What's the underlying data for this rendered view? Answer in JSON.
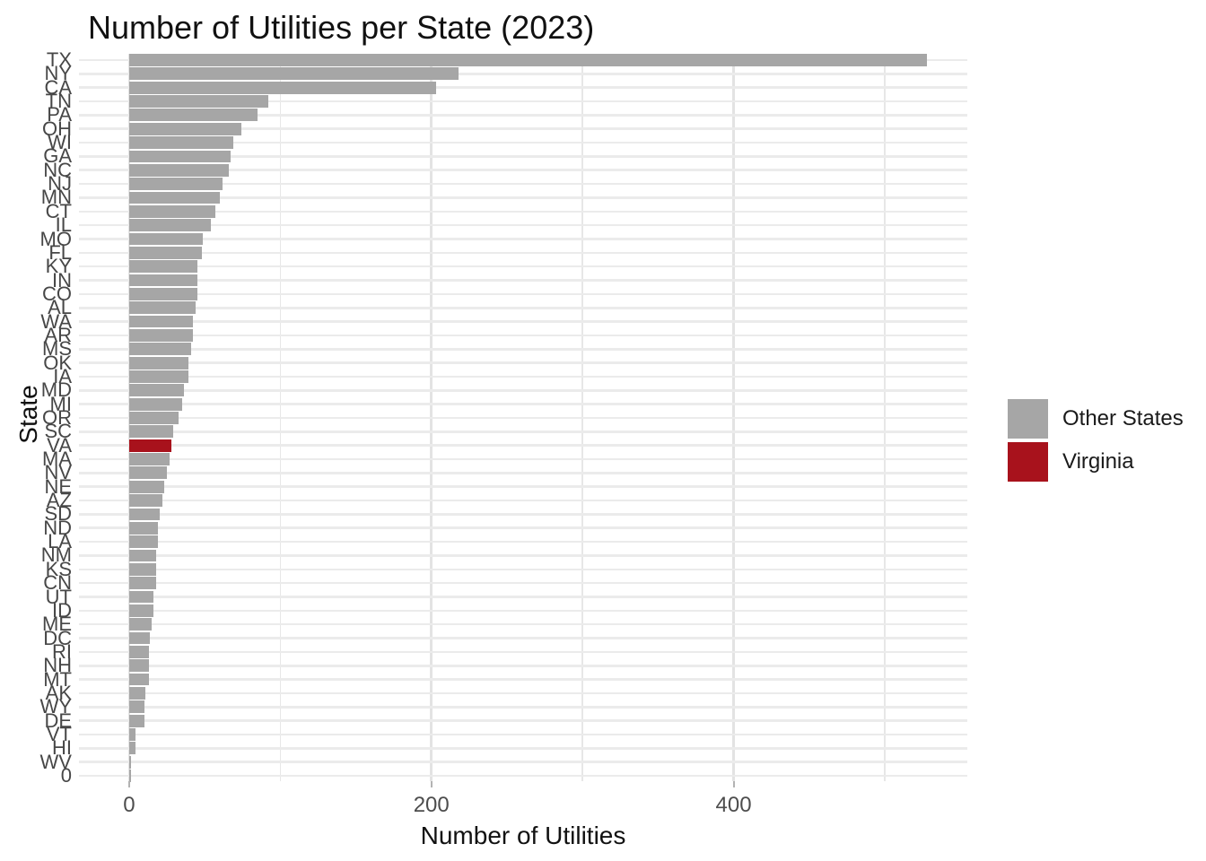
{
  "title": "Number of Utilities per State (2023)",
  "chart_data": {
    "type": "bar",
    "orientation": "horizontal",
    "title": "Number of Utilities per State (2023)",
    "xlabel": "Number of Utilities",
    "ylabel": "State",
    "x_ticks": [
      0,
      200,
      400
    ],
    "x_gridlines": [
      0,
      100,
      200,
      300,
      400,
      500
    ],
    "x_major_ticks": [
      0,
      200,
      400
    ],
    "xlim": [
      0,
      555
    ],
    "grid": "on",
    "bar_color_other": "#A6A6A6",
    "bar_color_highlight": "#A8121C",
    "highlight_category": "VA",
    "legend": {
      "position": "right",
      "entries": [
        {
          "label": "Other States",
          "color": "#A6A6A6"
        },
        {
          "label": "Virginia",
          "color": "#A8121C"
        }
      ]
    },
    "categories": [
      "TX",
      "NY",
      "CA",
      "TN",
      "PA",
      "OH",
      "WI",
      "GA",
      "NC",
      "NJ",
      "MN",
      "CT",
      "IL",
      "MO",
      "FL",
      "KY",
      "IN",
      "CO",
      "AL",
      "WA",
      "AR",
      "MS",
      "OK",
      "IA",
      "MD",
      "MI",
      "OR",
      "SC",
      "VA",
      "MA",
      "NV",
      "NE",
      "AZ",
      "SD",
      "ND",
      "LA",
      "NM",
      "KS",
      "CN",
      "UT",
      "ID",
      "ME",
      "DC",
      "RI",
      "NH",
      "MT",
      "AK",
      "WY",
      "DE",
      "VT",
      "HI",
      "WV",
      "0"
    ],
    "values": [
      528,
      218,
      203,
      92,
      85,
      74,
      69,
      67,
      66,
      62,
      60,
      57,
      54,
      49,
      48,
      45,
      45,
      45,
      44,
      42,
      42,
      41,
      39,
      39,
      36,
      35,
      33,
      29,
      28,
      27,
      25,
      23,
      22,
      20,
      19,
      19,
      18,
      18,
      18,
      16,
      16,
      15,
      14,
      13,
      13,
      13,
      11,
      10,
      10,
      4,
      4,
      1,
      1
    ]
  }
}
